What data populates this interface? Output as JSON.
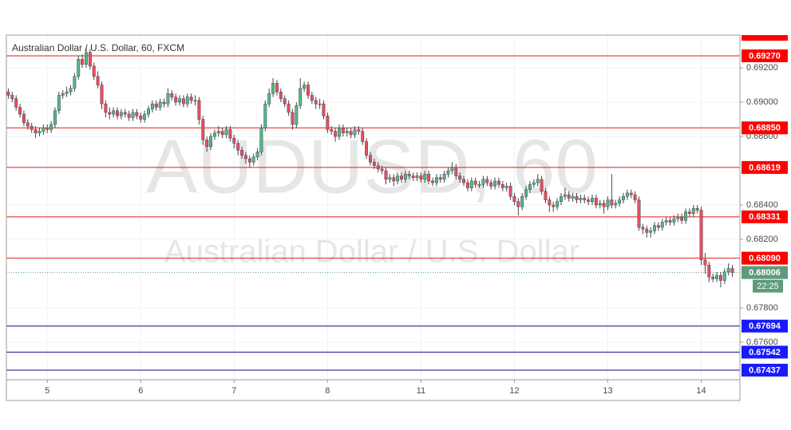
{
  "chart_data": {
    "type": "candlestick",
    "title": "Australian Dollar / U.S. Dollar, 60, FXCM",
    "watermark": [
      "AUDUSD, 60",
      "Australian Dollar / U.S. Dollar"
    ],
    "categories": [
      null,
      null,
      null,
      null,
      null,
      null,
      null,
      null,
      null,
      null,
      "5",
      null,
      null,
      null,
      null,
      null,
      null,
      null,
      null,
      null,
      null,
      null,
      null,
      null,
      null,
      null,
      null,
      null,
      null,
      null,
      null,
      null,
      null,
      null,
      "6",
      null,
      null,
      null,
      null,
      null,
      null,
      null,
      null,
      null,
      null,
      null,
      null,
      null,
      null,
      null,
      null,
      null,
      null,
      null,
      null,
      null,
      null,
      null,
      "7",
      null,
      null,
      null,
      null,
      null,
      null,
      null,
      null,
      null,
      null,
      null,
      null,
      null,
      null,
      null,
      null,
      null,
      null,
      null,
      null,
      null,
      null,
      null,
      "8",
      null,
      null,
      null,
      null,
      null,
      null,
      null,
      null,
      null,
      null,
      null,
      null,
      null,
      null,
      null,
      null,
      null,
      null,
      null,
      null,
      null,
      null,
      null,
      "11",
      null,
      null,
      null,
      null,
      null,
      null,
      null,
      null,
      null,
      null,
      null,
      null,
      null,
      null,
      null,
      null,
      null,
      null,
      null,
      null,
      null,
      null,
      null,
      "12",
      null,
      null,
      null,
      null,
      null,
      null,
      null,
      null,
      null,
      null,
      null,
      null,
      null,
      null,
      null,
      null,
      null,
      null,
      null,
      null,
      null,
      null,
      null,
      "13",
      null,
      null,
      null,
      null,
      null,
      null,
      null,
      null,
      null,
      null,
      null,
      null,
      null,
      null,
      null,
      null,
      null,
      null,
      null,
      null,
      null,
      null,
      null,
      "14",
      null,
      null,
      null,
      null,
      null,
      null,
      null,
      null
    ],
    "open": [
      0.6906,
      0.6904,
      0.6902,
      0.6897,
      0.6893,
      0.6888,
      0.6886,
      0.6884,
      0.6882,
      0.6883,
      0.6885,
      0.6884,
      0.6887,
      0.6895,
      0.6904,
      0.6905,
      0.6906,
      0.6908,
      0.6915,
      0.6925,
      0.6922,
      0.6929,
      0.6921,
      0.6915,
      0.691,
      0.6899,
      0.6894,
      0.6893,
      0.6895,
      0.6892,
      0.6894,
      0.6893,
      0.6891,
      0.6894,
      0.6892,
      0.689,
      0.6893,
      0.6896,
      0.6899,
      0.6897,
      0.69,
      0.6899,
      0.6905,
      0.6903,
      0.69,
      0.6902,
      0.6899,
      0.6903,
      0.6901,
      0.6901,
      0.689,
      0.6878,
      0.6874,
      0.688,
      0.6882,
      0.6883,
      0.6881,
      0.6884,
      0.6879,
      0.6876,
      0.6872,
      0.6869,
      0.6867,
      0.6865,
      0.6868,
      0.6871,
      0.6885,
      0.6899,
      0.6905,
      0.6911,
      0.6906,
      0.6902,
      0.6899,
      0.6894,
      0.6887,
      0.6898,
      0.6908,
      0.691,
      0.6904,
      0.6901,
      0.6899,
      0.6899,
      0.6892,
      0.6884,
      0.6883,
      0.688,
      0.6885,
      0.6882,
      0.6883,
      0.6881,
      0.6884,
      0.6883,
      0.6877,
      0.6869,
      0.6865,
      0.6863,
      0.6861,
      0.686,
      0.6855,
      0.6856,
      0.6854,
      0.6857,
      0.6855,
      0.6858,
      0.6857,
      0.6856,
      0.6857,
      0.6855,
      0.6858,
      0.6854,
      0.6853,
      0.6856,
      0.6855,
      0.6858,
      0.686,
      0.6862,
      0.6857,
      0.6855,
      0.6853,
      0.685,
      0.6854,
      0.6852,
      0.6852,
      0.6855,
      0.6853,
      0.6851,
      0.6854,
      0.6852,
      0.685,
      0.6851,
      0.6845,
      0.6842,
      0.6839,
      0.6845,
      0.6849,
      0.6852,
      0.6853,
      0.6855,
      0.6848,
      0.6843,
      0.684,
      0.6839,
      0.6842,
      0.6845,
      0.6846,
      0.6844,
      0.6845,
      0.6843,
      0.6844,
      0.6843,
      0.6842,
      0.6844,
      0.684,
      0.6841,
      0.6839,
      0.6843,
      0.684,
      0.6841,
      0.6843,
      0.6845,
      0.6847,
      0.6846,
      0.6843,
      0.6827,
      0.6826,
      0.6824,
      0.6825,
      0.6828,
      0.6827,
      0.683,
      0.6831,
      0.683,
      0.6832,
      0.6833,
      0.6831,
      0.6836,
      0.6835,
      0.6838,
      0.6837,
      0.6808,
      0.6805,
      0.6798,
      0.6797,
      0.6799,
      0.6796,
      0.6801,
      0.6803
    ],
    "high": [
      0.6908,
      0.6906,
      0.6904,
      0.6899,
      0.6895,
      0.689,
      0.6888,
      0.6886,
      0.6885,
      0.6887,
      0.6887,
      0.6889,
      0.6897,
      0.6906,
      0.6907,
      0.6909,
      0.691,
      0.6917,
      0.6927,
      0.6928,
      0.6932,
      0.6931,
      0.6923,
      0.6918,
      0.6912,
      0.6901,
      0.6897,
      0.6897,
      0.6897,
      0.6896,
      0.6896,
      0.6895,
      0.6896,
      0.6896,
      0.6894,
      0.6895,
      0.6898,
      0.6901,
      0.6901,
      0.6902,
      0.6902,
      0.6908,
      0.6907,
      0.6905,
      0.6904,
      0.6904,
      0.6905,
      0.6905,
      0.6904,
      0.6903,
      0.6892,
      0.688,
      0.6882,
      0.6884,
      0.6886,
      0.6885,
      0.6886,
      0.6886,
      0.6881,
      0.6878,
      0.6874,
      0.6871,
      0.6869,
      0.687,
      0.6873,
      0.6887,
      0.6901,
      0.6908,
      0.6914,
      0.6913,
      0.6908,
      0.6904,
      0.6901,
      0.6896,
      0.69,
      0.6914,
      0.6912,
      0.6912,
      0.6906,
      0.6903,
      0.6902,
      0.6901,
      0.6894,
      0.6886,
      0.6885,
      0.6887,
      0.6887,
      0.6885,
      0.6885,
      0.6886,
      0.6886,
      0.6885,
      0.6879,
      0.6871,
      0.6867,
      0.6865,
      0.6863,
      0.6862,
      0.6858,
      0.6858,
      0.6859,
      0.6859,
      0.686,
      0.686,
      0.6859,
      0.6859,
      0.6859,
      0.686,
      0.686,
      0.6856,
      0.6858,
      0.6858,
      0.686,
      0.6862,
      0.6865,
      0.6864,
      0.6859,
      0.6857,
      0.6855,
      0.6856,
      0.6856,
      0.6854,
      0.6857,
      0.6857,
      0.6855,
      0.6856,
      0.6856,
      0.6854,
      0.6853,
      0.6853,
      0.6847,
      0.6844,
      0.6847,
      0.6851,
      0.6854,
      0.6855,
      0.6858,
      0.6857,
      0.685,
      0.6845,
      0.6842,
      0.6844,
      0.6847,
      0.685,
      0.6848,
      0.6847,
      0.6847,
      0.6846,
      0.6846,
      0.6845,
      0.6846,
      0.6846,
      0.6843,
      0.6843,
      0.6845,
      0.6858,
      0.6843,
      0.6845,
      0.6847,
      0.6849,
      0.6849,
      0.6848,
      0.6845,
      0.6829,
      0.6828,
      0.6827,
      0.683,
      0.683,
      0.6832,
      0.6833,
      0.6833,
      0.6834,
      0.6835,
      0.6835,
      0.6838,
      0.6838,
      0.684,
      0.684,
      0.6839,
      0.6812,
      0.6807,
      0.68,
      0.6801,
      0.6801,
      0.6803,
      0.6806,
      0.6805
    ],
    "low": [
      0.6902,
      0.69,
      0.6895,
      0.6891,
      0.6886,
      0.6884,
      0.6882,
      0.6879,
      0.688,
      0.6881,
      0.6882,
      0.6882,
      0.6885,
      0.6893,
      0.6902,
      0.6903,
      0.6904,
      0.6906,
      0.6913,
      0.692,
      0.692,
      0.6919,
      0.6913,
      0.6908,
      0.6896,
      0.6891,
      0.689,
      0.6891,
      0.689,
      0.689,
      0.6891,
      0.6889,
      0.6889,
      0.689,
      0.6888,
      0.6888,
      0.6891,
      0.6894,
      0.6895,
      0.6895,
      0.6897,
      0.6897,
      0.6901,
      0.6898,
      0.6898,
      0.6897,
      0.6897,
      0.6899,
      0.6898,
      0.6887,
      0.6875,
      0.6871,
      0.6872,
      0.6878,
      0.688,
      0.6879,
      0.6879,
      0.6877,
      0.6873,
      0.6869,
      0.6867,
      0.6864,
      0.6862,
      0.6863,
      0.6866,
      0.6869,
      0.6883,
      0.6897,
      0.6903,
      0.6904,
      0.69,
      0.6897,
      0.6892,
      0.6884,
      0.6885,
      0.6896,
      0.6906,
      0.6902,
      0.6899,
      0.6896,
      0.6896,
      0.689,
      0.6882,
      0.6881,
      0.6877,
      0.6878,
      0.688,
      0.688,
      0.6879,
      0.6879,
      0.6881,
      0.6875,
      0.6867,
      0.6863,
      0.6861,
      0.6859,
      0.6858,
      0.6852,
      0.6853,
      0.6851,
      0.6852,
      0.6853,
      0.6853,
      0.6855,
      0.6854,
      0.6854,
      0.6853,
      0.6853,
      0.6852,
      0.6851,
      0.6851,
      0.6853,
      0.6853,
      0.6856,
      0.6858,
      0.6855,
      0.6853,
      0.6851,
      0.6848,
      0.6848,
      0.685,
      0.685,
      0.685,
      0.6851,
      0.6849,
      0.6849,
      0.685,
      0.6848,
      0.6848,
      0.6843,
      0.684,
      0.6834,
      0.6837,
      0.6843,
      0.6847,
      0.685,
      0.6851,
      0.6846,
      0.6841,
      0.6836,
      0.6836,
      0.6837,
      0.684,
      0.6843,
      0.6842,
      0.6842,
      0.6841,
      0.6841,
      0.6841,
      0.684,
      0.684,
      0.6838,
      0.6838,
      0.6835,
      0.6837,
      0.6838,
      0.6838,
      0.6839,
      0.6841,
      0.6843,
      0.6844,
      0.6841,
      0.6825,
      0.6823,
      0.6821,
      0.6821,
      0.6823,
      0.6825,
      0.6825,
      0.6828,
      0.6828,
      0.6828,
      0.683,
      0.6829,
      0.6829,
      0.6833,
      0.6833,
      0.6835,
      0.6805,
      0.68,
      0.6795,
      0.6795,
      0.6795,
      0.6792,
      0.6794,
      0.6799,
      0.6798
    ],
    "close": [
      0.6904,
      0.6902,
      0.6897,
      0.6893,
      0.6888,
      0.6886,
      0.6884,
      0.6882,
      0.6883,
      0.6885,
      0.6884,
      0.6887,
      0.6895,
      0.6904,
      0.6905,
      0.6906,
      0.6908,
      0.6915,
      0.6925,
      0.6922,
      0.6929,
      0.6921,
      0.6915,
      0.691,
      0.6899,
      0.6894,
      0.6893,
      0.6895,
      0.6892,
      0.6894,
      0.6893,
      0.6891,
      0.6894,
      0.6892,
      0.689,
      0.6893,
      0.6896,
      0.6899,
      0.6897,
      0.69,
      0.6899,
      0.6905,
      0.6903,
      0.69,
      0.6902,
      0.6899,
      0.6903,
      0.6901,
      0.6901,
      0.689,
      0.6878,
      0.6874,
      0.688,
      0.6882,
      0.6883,
      0.6881,
      0.6884,
      0.6879,
      0.6876,
      0.6872,
      0.6869,
      0.6867,
      0.6865,
      0.6868,
      0.6871,
      0.6885,
      0.6899,
      0.6905,
      0.6911,
      0.6906,
      0.6902,
      0.6899,
      0.6894,
      0.6887,
      0.6898,
      0.6908,
      0.691,
      0.6904,
      0.6901,
      0.6899,
      0.6899,
      0.6892,
      0.6884,
      0.6883,
      0.688,
      0.6885,
      0.6882,
      0.6883,
      0.6881,
      0.6884,
      0.6883,
      0.6877,
      0.6869,
      0.6865,
      0.6863,
      0.6861,
      0.686,
      0.6855,
      0.6856,
      0.6854,
      0.6857,
      0.6855,
      0.6858,
      0.6857,
      0.6856,
      0.6857,
      0.6855,
      0.6858,
      0.6854,
      0.6853,
      0.6856,
      0.6855,
      0.6858,
      0.686,
      0.6862,
      0.6857,
      0.6855,
      0.6853,
      0.685,
      0.6854,
      0.6852,
      0.6852,
      0.6855,
      0.6853,
      0.6851,
      0.6854,
      0.6852,
      0.685,
      0.6851,
      0.6845,
      0.6842,
      0.6839,
      0.6845,
      0.6849,
      0.6852,
      0.6853,
      0.6855,
      0.6848,
      0.6843,
      0.684,
      0.6839,
      0.6842,
      0.6845,
      0.6846,
      0.6844,
      0.6845,
      0.6843,
      0.6844,
      0.6843,
      0.6842,
      0.6844,
      0.684,
      0.6841,
      0.6839,
      0.6843,
      0.684,
      0.6841,
      0.6843,
      0.6845,
      0.6847,
      0.6846,
      0.6843,
      0.6827,
      0.6826,
      0.6824,
      0.6825,
      0.6828,
      0.6827,
      0.683,
      0.6831,
      0.683,
      0.6832,
      0.6833,
      0.6831,
      0.6836,
      0.6835,
      0.6838,
      0.6837,
      0.6808,
      0.6805,
      0.6798,
      0.6797,
      0.6799,
      0.6796,
      0.6801,
      0.6803,
      0.68006
    ],
    "up_color": "#53b987",
    "down_color": "#eb4d5c",
    "ylim": [
      0.67381,
      0.69391
    ],
    "yticks": [
      {
        "value": 0.692,
        "label": "0.69200"
      },
      {
        "value": 0.69,
        "label": "0.69000"
      },
      {
        "value": 0.688,
        "label": "0.68800"
      },
      {
        "value": 0.684,
        "label": "0.68400"
      },
      {
        "value": 0.682,
        "label": "0.68200"
      },
      {
        "value": 0.678,
        "label": "0.67800"
      },
      {
        "value": 0.676,
        "label": "0.67600"
      }
    ],
    "grid": true,
    "levels": [
      {
        "value": 0.6927,
        "label": "0.69270",
        "color": "#e31b1b"
      },
      {
        "value": 0.6885,
        "label": "0.68850",
        "color": "#e31b1b"
      },
      {
        "value": 0.68619,
        "color": "#e31b1b"
      },
      {
        "value": 0.68331,
        "color": "#e31b1b"
      },
      {
        "value": 0.6809,
        "label": "0.68090",
        "color": "#e31b1b"
      },
      {
        "value": 0.67694,
        "color": "#0d0d8c"
      },
      {
        "value": 0.67542,
        "color": "#0d0d8c"
      },
      {
        "value": 0.67437,
        "color": "#0d0d8c"
      }
    ],
    "level_label_colors": {
      "#e31b1b": "#ff0000",
      "#0d0d8c": "#1a1aff"
    },
    "last_price": {
      "value": 0.68006,
      "countdown": "22:25",
      "color": "#5d9b7c"
    }
  }
}
